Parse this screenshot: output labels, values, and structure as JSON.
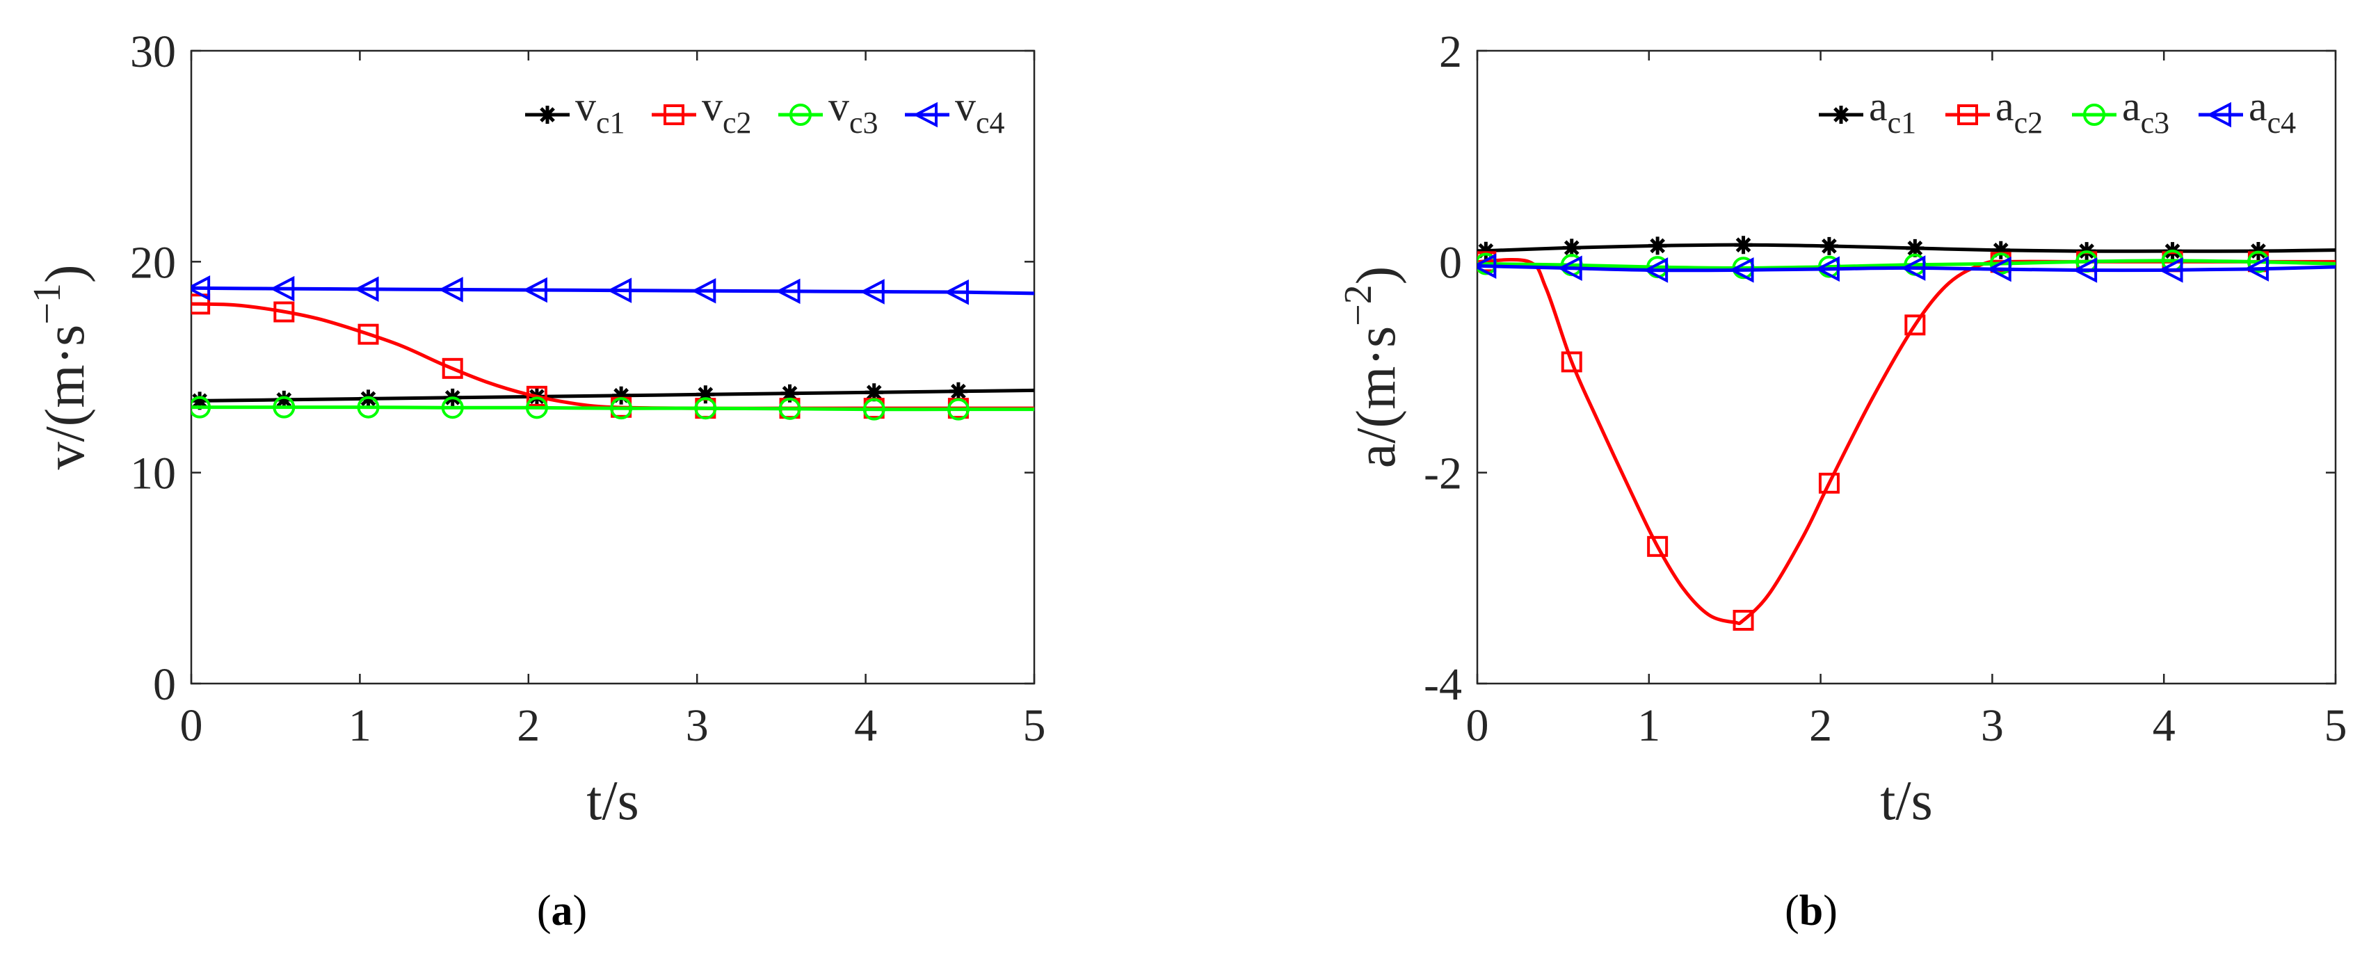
{
  "figure": {
    "panels": [
      {
        "label_open": "(",
        "label_letter": "a",
        "label_close": ")"
      },
      {
        "label_open": "(",
        "label_letter": "b",
        "label_close": ")"
      }
    ]
  },
  "chart_data": [
    {
      "type": "line",
      "xlabel": "t/s",
      "ylabel": "v/(m·s⁻¹)",
      "ylabel_parts": {
        "main": "v/(m·s",
        "sup": "−1",
        "close": ")"
      },
      "xlim": [
        0,
        5
      ],
      "ylim": [
        0,
        30
      ],
      "xticks": [
        0,
        1,
        2,
        3,
        4,
        5
      ],
      "yticks": [
        0,
        10,
        20,
        30
      ],
      "grid": false,
      "legend_placement": "top-right",
      "series": [
        {
          "name": "vc1",
          "name_main": "v",
          "name_sub": "c1",
          "color": "#000000",
          "marker": "asterisk",
          "x": [
            0,
            0.5,
            1,
            1.5,
            2,
            2.5,
            3,
            3.5,
            4,
            4.5,
            5
          ],
          "y": [
            13.4,
            13.45,
            13.5,
            13.55,
            13.6,
            13.65,
            13.7,
            13.75,
            13.8,
            13.85,
            13.9
          ]
        },
        {
          "name": "vc2",
          "name_main": "v",
          "name_sub": "c2",
          "color": "#ff0000",
          "marker": "square",
          "x": [
            0,
            0.25,
            0.5,
            0.75,
            1,
            1.25,
            1.5,
            1.75,
            2,
            2.25,
            2.5,
            3,
            3.5,
            4,
            4.5,
            5
          ],
          "y": [
            18.0,
            17.95,
            17.7,
            17.3,
            16.7,
            16.0,
            15.1,
            14.3,
            13.7,
            13.3,
            13.1,
            13.05,
            13.05,
            13.05,
            13.05,
            13.05
          ]
        },
        {
          "name": "vc3",
          "name_main": "v",
          "name_sub": "c3",
          "color": "#00ff00",
          "marker": "circle",
          "x": [
            0,
            0.5,
            1,
            1.5,
            2,
            2.5,
            3,
            3.5,
            4,
            4.5,
            5
          ],
          "y": [
            13.1,
            13.1,
            13.1,
            13.08,
            13.08,
            13.05,
            13.05,
            13.03,
            13.0,
            13.0,
            13.0
          ]
        },
        {
          "name": "vc4",
          "name_main": "v",
          "name_sub": "c4",
          "color": "#0000ff",
          "marker": "triangle-left",
          "x": [
            0,
            0.5,
            1,
            1.5,
            2,
            2.5,
            3,
            3.5,
            4,
            4.5,
            5
          ],
          "y": [
            18.75,
            18.72,
            18.7,
            18.68,
            18.66,
            18.64,
            18.62,
            18.6,
            18.58,
            18.56,
            18.5
          ]
        }
      ],
      "marker_x": [
        0.05,
        0.55,
        1.05,
        1.55,
        2.05,
        2.55,
        3.05,
        3.55,
        4.05,
        4.55
      ]
    },
    {
      "type": "line",
      "xlabel": "t/s",
      "ylabel": "a/(m·s⁻²)",
      "ylabel_parts": {
        "main": "a/(m·s",
        "sup": "−2",
        "close": ")"
      },
      "xlim": [
        0,
        5
      ],
      "ylim": [
        -4,
        2
      ],
      "xticks": [
        0,
        1,
        2,
        3,
        4,
        5
      ],
      "yticks": [
        -4,
        -2,
        0,
        2
      ],
      "grid": false,
      "legend_placement": "top-right",
      "series": [
        {
          "name": "ac1",
          "name_main": "a",
          "name_sub": "c1",
          "color": "#000000",
          "marker": "asterisk",
          "x": [
            0,
            0.5,
            1,
            1.5,
            2,
            2.5,
            3,
            3.5,
            4,
            4.5,
            5
          ],
          "y": [
            0.1,
            0.13,
            0.15,
            0.16,
            0.15,
            0.13,
            0.11,
            0.1,
            0.1,
            0.1,
            0.11
          ]
        },
        {
          "name": "ac2",
          "name_main": "a",
          "name_sub": "c2",
          "color": "#ff0000",
          "marker": "square",
          "x": [
            0,
            0.3,
            0.4,
            0.55,
            0.7,
            0.9,
            1.05,
            1.2,
            1.35,
            1.5,
            1.55,
            1.7,
            1.9,
            2.05,
            2.3,
            2.55,
            2.75,
            2.95,
            3.1,
            3.5,
            4,
            4.5,
            5
          ],
          "y": [
            0,
            0,
            -0.25,
            -0.95,
            -1.5,
            -2.2,
            -2.7,
            -3.1,
            -3.35,
            -3.42,
            -3.4,
            -3.15,
            -2.6,
            -2.1,
            -1.3,
            -0.6,
            -0.2,
            -0.02,
            0,
            0,
            0,
            0,
            0
          ]
        },
        {
          "name": "ac3",
          "name_main": "a",
          "name_sub": "c3",
          "color": "#00ff00",
          "marker": "circle",
          "x": [
            0,
            0.5,
            1,
            1.5,
            2,
            2.5,
            3,
            3.5,
            4,
            4.5,
            5
          ],
          "y": [
            -0.02,
            -0.03,
            -0.05,
            -0.06,
            -0.05,
            -0.03,
            -0.02,
            0.0,
            0.01,
            0.0,
            -0.02
          ]
        },
        {
          "name": "ac4",
          "name_main": "a",
          "name_sub": "c4",
          "color": "#0000ff",
          "marker": "triangle-left",
          "x": [
            0,
            0.5,
            1,
            1.5,
            2,
            2.5,
            3,
            3.5,
            4,
            4.5,
            5
          ],
          "y": [
            -0.04,
            -0.06,
            -0.08,
            -0.08,
            -0.07,
            -0.06,
            -0.07,
            -0.08,
            -0.08,
            -0.07,
            -0.05
          ]
        }
      ],
      "marker_x": [
        0.05,
        0.55,
        1.05,
        1.55,
        2.05,
        2.55,
        3.05,
        3.55,
        4.05,
        4.55
      ]
    }
  ]
}
